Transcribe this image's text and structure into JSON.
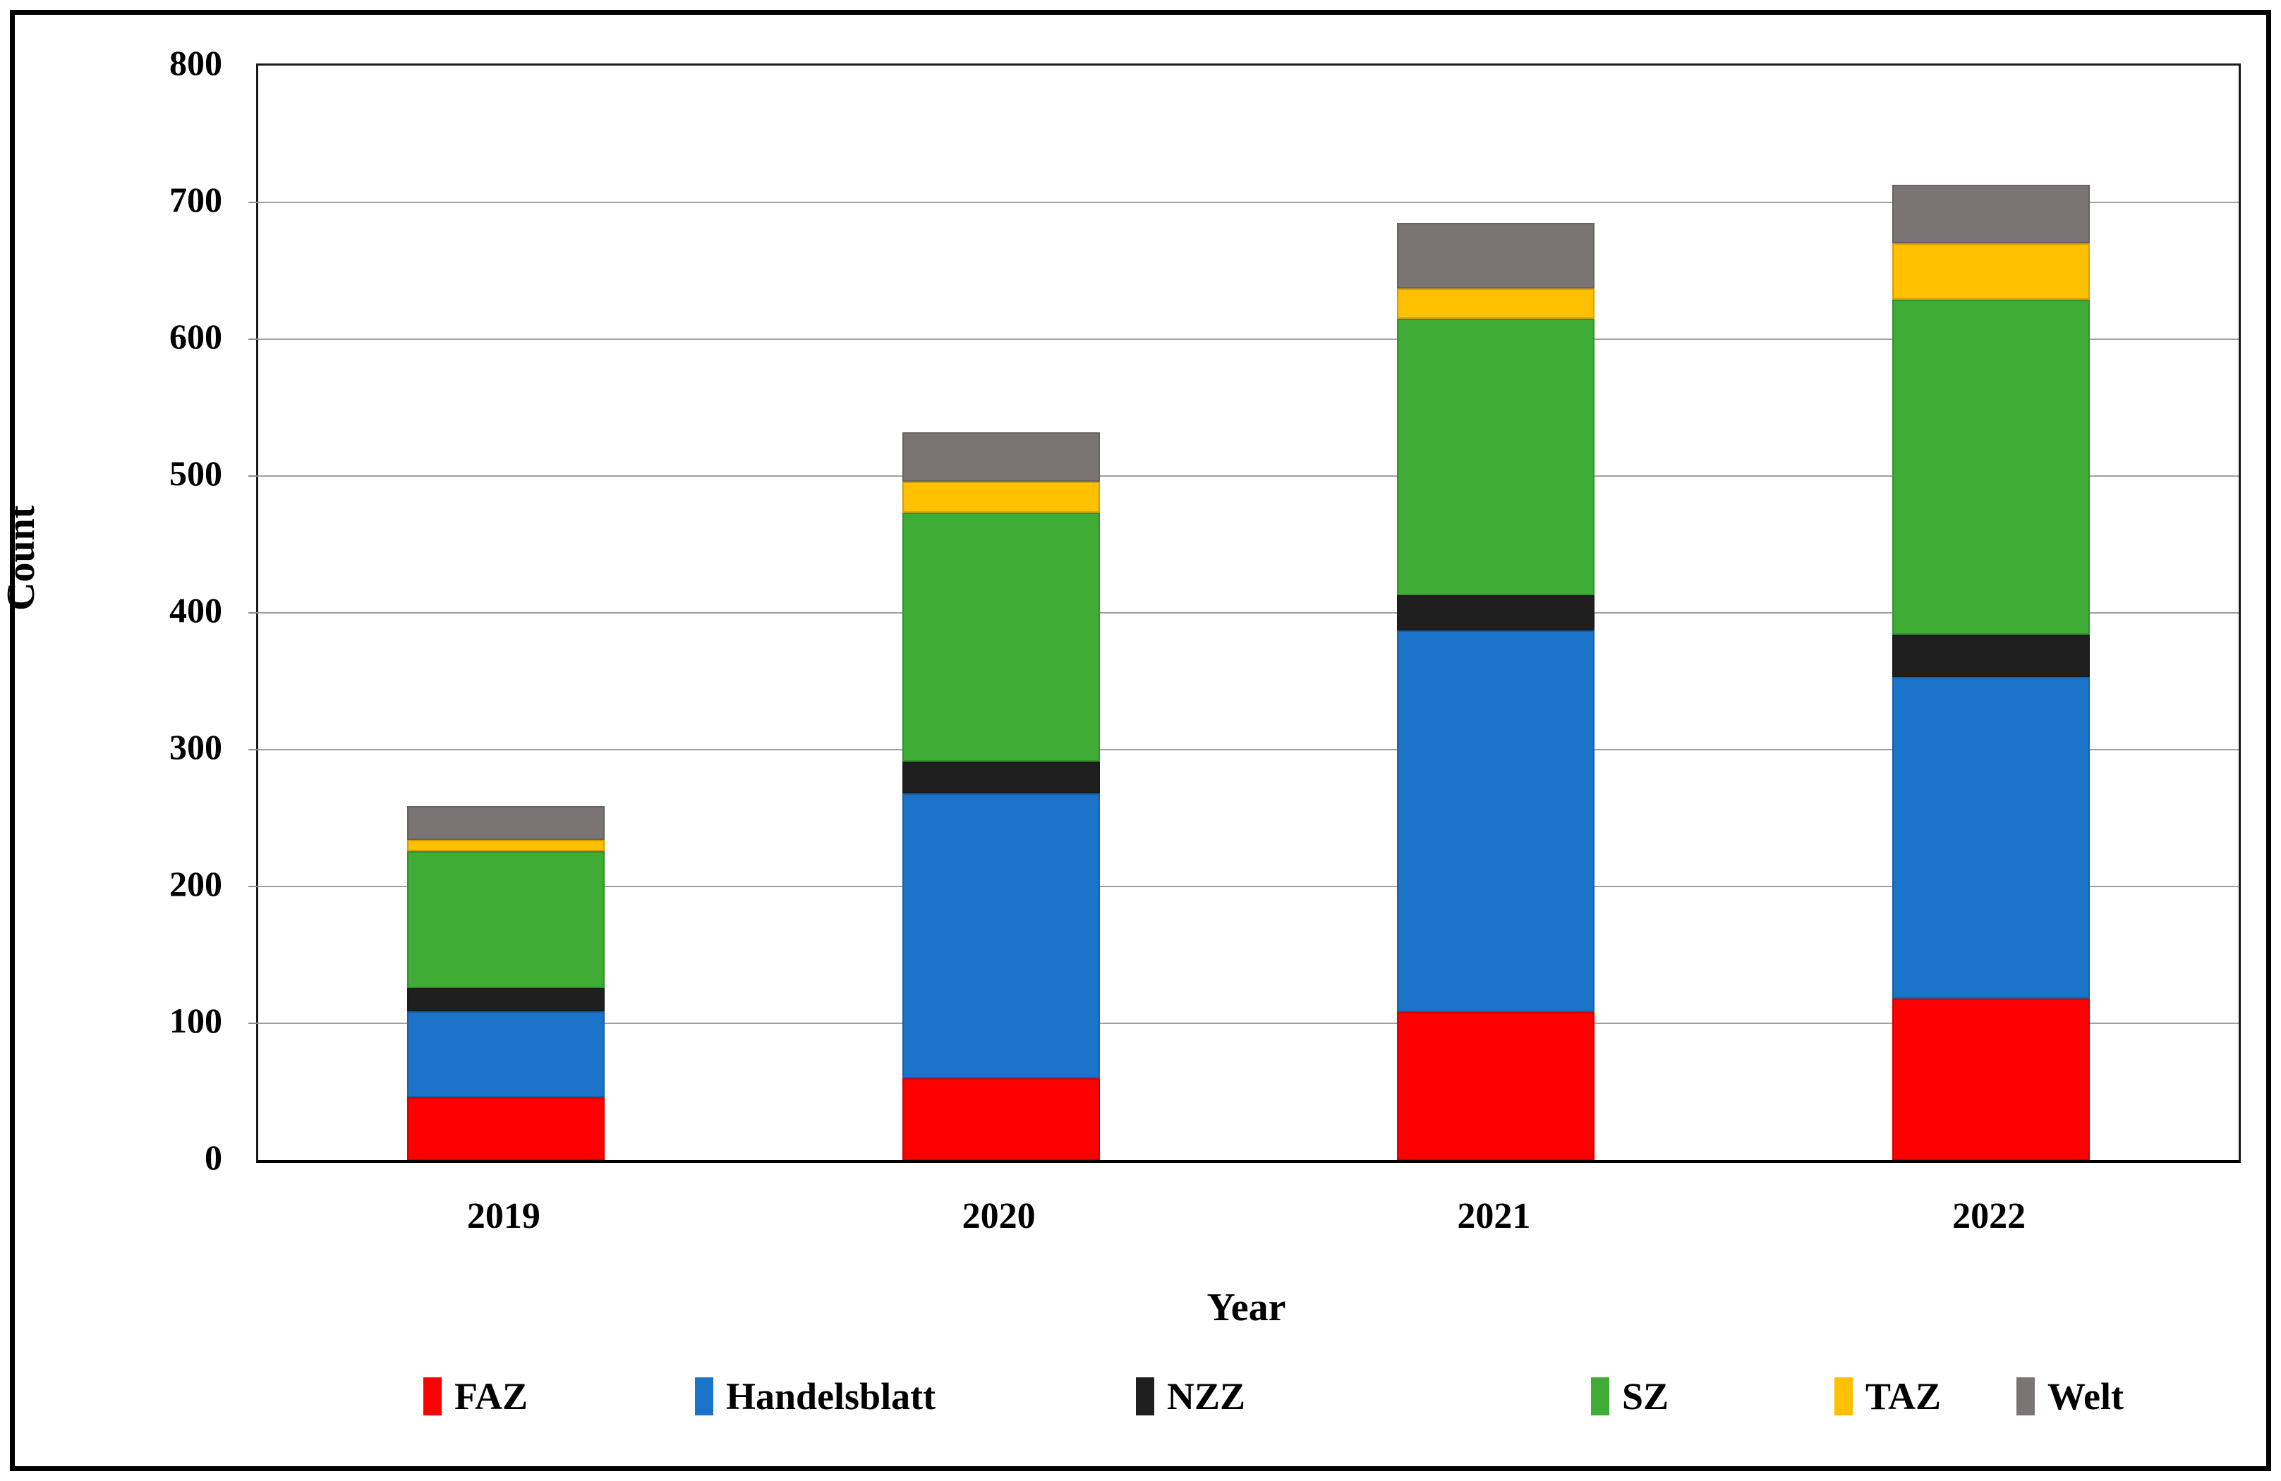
{
  "chart_data": {
    "type": "bar",
    "stacked": true,
    "title": "",
    "xlabel": "Year",
    "ylabel": "Count",
    "categories": [
      "2019",
      "2020",
      "2021",
      "2022"
    ],
    "series": [
      {
        "name": "FAZ",
        "color": "#ff0000",
        "values": [
          46,
          60,
          108,
          118
        ]
      },
      {
        "name": "Handelsblatt",
        "color": "#1c74c8",
        "values": [
          63,
          208,
          279,
          235
        ]
      },
      {
        "name": "NZZ",
        "color": "#1f1f1f",
        "values": [
          17,
          23,
          26,
          31
        ]
      },
      {
        "name": "SZ",
        "color": "#3fac35",
        "values": [
          100,
          182,
          202,
          245
        ]
      },
      {
        "name": "TAZ",
        "color": "#ffc000",
        "values": [
          8,
          23,
          22,
          41
        ]
      },
      {
        "name": "Welt",
        "color": "#7b7474",
        "values": [
          25,
          36,
          48,
          43
        ]
      }
    ],
    "totals": [
      259,
      532,
      685,
      713
    ],
    "ylim": [
      0,
      800
    ],
    "ytick_step": 100,
    "ytick_labels": [
      "0",
      "100",
      "200",
      "300",
      "400",
      "500",
      "600",
      "700",
      "800"
    ],
    "grid": true,
    "gridline_color": "#a0a0a0",
    "legend_position": "bottom"
  },
  "legend": {
    "items": [
      "FAZ",
      "Handelsblatt",
      "NZZ",
      "SZ",
      "TAZ",
      "Welt"
    ]
  }
}
